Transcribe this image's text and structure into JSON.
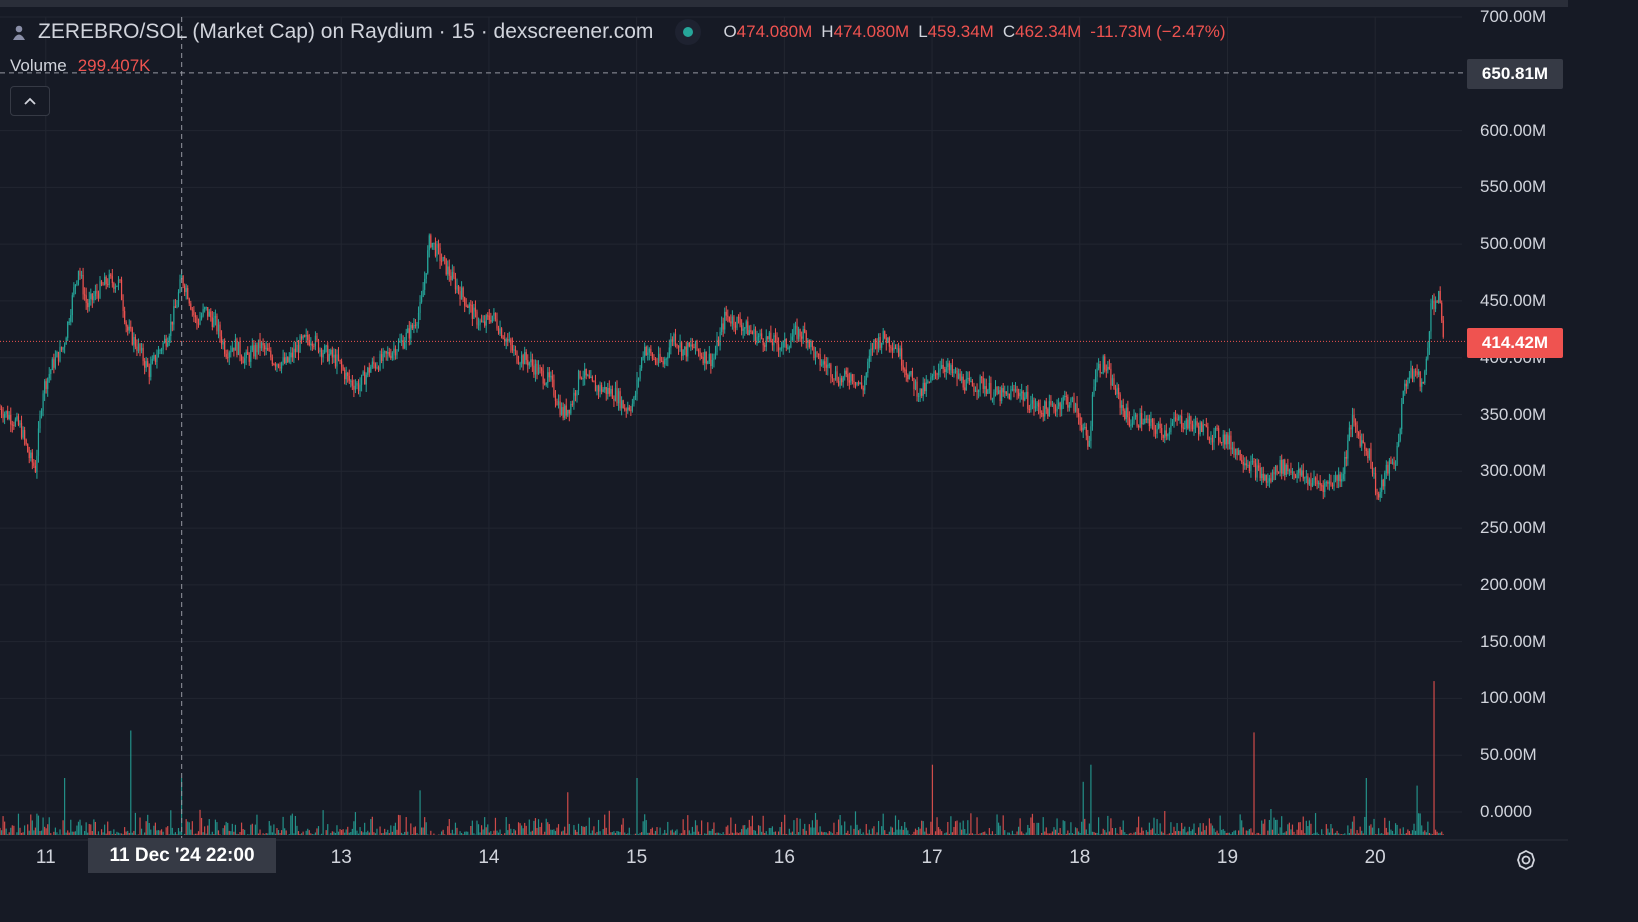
{
  "header": {
    "title": "ZEREBRO/SOL (Market Cap) on Raydium · 15 · dexscreener.com",
    "ohlc": {
      "o_label": "O",
      "o_value": "474.080M",
      "h_label": "H",
      "h_value": "474.080M",
      "l_label": "L",
      "l_value": "459.34M",
      "c_label": "C",
      "c_value": "462.34M",
      "change": "-11.73M (−2.47%)"
    },
    "volume_label": "Volume",
    "volume_value": "299.407K",
    "collapse_icon": "chevron-up-icon"
  },
  "price_axis": {
    "crosshair_tag": "650.81M",
    "last_price_tag": "414.42M"
  },
  "time_axis": {
    "crosshair_tag": "11 Dec '24    22:00"
  },
  "colors": {
    "background": "#161a25",
    "grid": "#222631",
    "up": "#26a69a",
    "down": "#ef5350",
    "text": "#d1d4dc"
  },
  "chart_data": {
    "type": "candlestick",
    "title": "ZEREBRO/SOL (Market Cap) on Raydium · 15 · dexscreener.com",
    "xlabel": "",
    "ylabel": "",
    "ylim": [
      0,
      700000000
    ],
    "y_tick_labels": [
      "700.00M",
      "650.81M",
      "600.00M",
      "550.00M",
      "500.00M",
      "450.00M",
      "400.00M",
      "350.00M",
      "300.00M",
      "250.00M",
      "200.00M",
      "150.00M",
      "100.00M",
      "50.00M",
      "0.0000"
    ],
    "y_ticks": [
      700,
      600,
      550,
      500,
      450,
      400,
      350,
      300,
      250,
      200,
      150,
      100,
      50,
      0
    ],
    "x_tick_labels": [
      "11",
      "13",
      "14",
      "15",
      "16",
      "17",
      "18",
      "19",
      "20"
    ],
    "x_ticks_day": [
      11,
      13,
      14,
      15,
      16,
      17,
      18,
      19,
      20
    ],
    "x_range_day": [
      10.69,
      20.52
    ],
    "last_price": 414.42,
    "crosshair_price": 650.81,
    "crosshair_day": 11.92,
    "grid": true,
    "series": [
      {
        "name": "Market Cap",
        "unit": "M",
        "anchors": [
          [
            10.69,
            355
          ],
          [
            10.76,
            348
          ],
          [
            10.83,
            338
          ],
          [
            10.89,
            312
          ],
          [
            10.93,
            303
          ],
          [
            10.98,
            372
          ],
          [
            11.05,
            395
          ],
          [
            11.12,
            410
          ],
          [
            11.18,
            452
          ],
          [
            11.22,
            480
          ],
          [
            11.28,
            445
          ],
          [
            11.35,
            458
          ],
          [
            11.42,
            468
          ],
          [
            11.5,
            465
          ],
          [
            11.55,
            425
          ],
          [
            11.62,
            410
          ],
          [
            11.7,
            388
          ],
          [
            11.75,
            402
          ],
          [
            11.82,
            418
          ],
          [
            11.88,
            444
          ],
          [
            11.92,
            470
          ],
          [
            11.96,
            458
          ],
          [
            12.02,
            430
          ],
          [
            12.08,
            442
          ],
          [
            12.15,
            430
          ],
          [
            12.22,
            406
          ],
          [
            12.28,
            412
          ],
          [
            12.35,
            398
          ],
          [
            12.45,
            411
          ],
          [
            12.55,
            397
          ],
          [
            12.63,
            395
          ],
          [
            12.72,
            412
          ],
          [
            12.8,
            418
          ],
          [
            12.86,
            408
          ],
          [
            12.92,
            402
          ],
          [
            12.98,
            396
          ],
          [
            13.05,
            380
          ],
          [
            13.12,
            375
          ],
          [
            13.2,
            392
          ],
          [
            13.28,
            398
          ],
          [
            13.35,
            407
          ],
          [
            13.42,
            415
          ],
          [
            13.48,
            426
          ],
          [
            13.54,
            445
          ],
          [
            13.6,
            505
          ],
          [
            13.68,
            486
          ],
          [
            13.75,
            470
          ],
          [
            13.82,
            455
          ],
          [
            13.9,
            437
          ],
          [
            13.96,
            428
          ],
          [
            14.02,
            438
          ],
          [
            14.1,
            420
          ],
          [
            14.18,
            402
          ],
          [
            14.26,
            398
          ],
          [
            14.34,
            387
          ],
          [
            14.42,
            378
          ],
          [
            14.5,
            350
          ],
          [
            14.56,
            360
          ],
          [
            14.62,
            388
          ],
          [
            14.7,
            375
          ],
          [
            14.78,
            372
          ],
          [
            14.86,
            368
          ],
          [
            14.92,
            356
          ],
          [
            14.98,
            360
          ],
          [
            15.05,
            410
          ],
          [
            15.12,
            398
          ],
          [
            15.18,
            395
          ],
          [
            15.25,
            420
          ],
          [
            15.32,
            405
          ],
          [
            15.38,
            410
          ],
          [
            15.45,
            402
          ],
          [
            15.52,
            398
          ],
          [
            15.6,
            437
          ],
          [
            15.68,
            432
          ],
          [
            15.75,
            425
          ],
          [
            15.82,
            418
          ],
          [
            15.9,
            415
          ],
          [
            16.0,
            410
          ],
          [
            16.08,
            422
          ],
          [
            16.15,
            420
          ],
          [
            16.22,
            398
          ],
          [
            16.3,
            392
          ],
          [
            16.38,
            380
          ],
          [
            16.46,
            385
          ],
          [
            16.53,
            372
          ],
          [
            16.6,
            412
          ],
          [
            16.68,
            418
          ],
          [
            16.76,
            410
          ],
          [
            16.84,
            385
          ],
          [
            16.92,
            368
          ],
          [
            17.0,
            380
          ],
          [
            17.06,
            396
          ],
          [
            17.12,
            388
          ],
          [
            17.18,
            382
          ],
          [
            17.26,
            374
          ],
          [
            17.34,
            378
          ],
          [
            17.42,
            368
          ],
          [
            17.5,
            366
          ],
          [
            17.58,
            372
          ],
          [
            17.66,
            360
          ],
          [
            17.74,
            354
          ],
          [
            17.82,
            356
          ],
          [
            17.9,
            364
          ],
          [
            17.96,
            358
          ],
          [
            18.02,
            340
          ],
          [
            18.06,
            318
          ],
          [
            18.1,
            388
          ],
          [
            18.16,
            395
          ],
          [
            18.22,
            378
          ],
          [
            18.28,
            358
          ],
          [
            18.34,
            344
          ],
          [
            18.42,
            346
          ],
          [
            18.5,
            338
          ],
          [
            18.58,
            335
          ],
          [
            18.66,
            345
          ],
          [
            18.74,
            342
          ],
          [
            18.82,
            338
          ],
          [
            18.9,
            332
          ],
          [
            18.98,
            330
          ],
          [
            19.06,
            318
          ],
          [
            19.14,
            308
          ],
          [
            19.2,
            300
          ],
          [
            19.28,
            290
          ],
          [
            19.34,
            305
          ],
          [
            19.42,
            302
          ],
          [
            19.5,
            296
          ],
          [
            19.58,
            290
          ],
          [
            19.66,
            288
          ],
          [
            19.72,
            292
          ],
          [
            19.78,
            298
          ],
          [
            19.84,
            345
          ],
          [
            19.9,
            328
          ],
          [
            19.96,
            316
          ],
          [
            20.02,
            275
          ],
          [
            20.08,
            302
          ],
          [
            20.14,
            310
          ],
          [
            20.2,
            378
          ],
          [
            20.27,
            388
          ],
          [
            20.33,
            375
          ],
          [
            20.38,
            448
          ],
          [
            20.43,
            452
          ],
          [
            20.47,
            414.42
          ]
        ]
      },
      {
        "name": "Volume",
        "unit": "M",
        "spikes": [
          [
            11.13,
            60
          ],
          [
            11.58,
            110
          ],
          [
            11.92,
            60
          ],
          [
            13.53,
            47
          ],
          [
            17.0,
            74
          ],
          [
            18.08,
            74
          ],
          [
            19.18,
            108
          ],
          [
            20.4,
            162
          ],
          [
            19.94,
            60
          ],
          [
            20.28,
            52
          ],
          [
            18.02,
            56
          ],
          [
            15.0,
            60
          ],
          [
            14.53,
            45
          ]
        ]
      }
    ]
  }
}
